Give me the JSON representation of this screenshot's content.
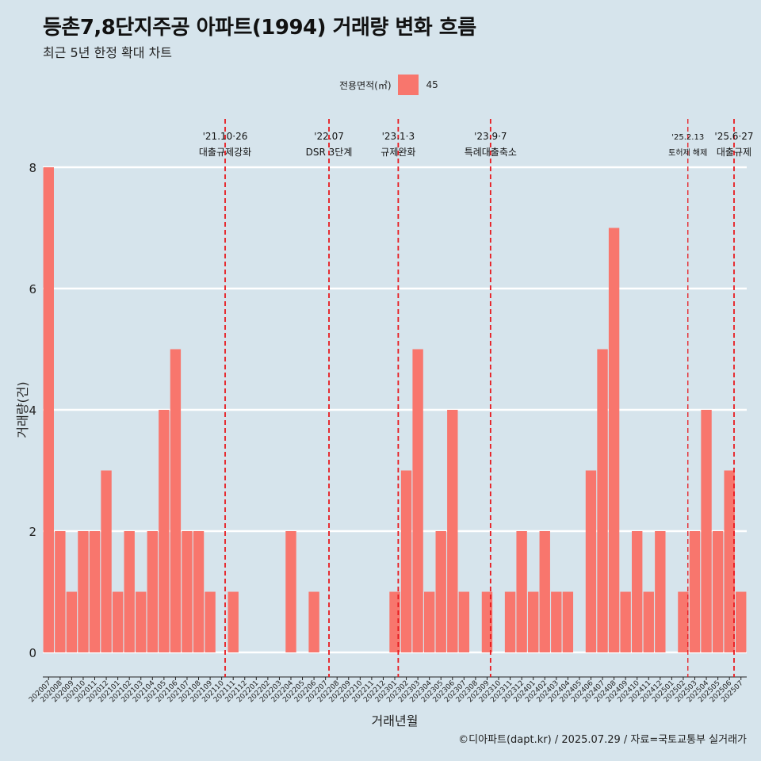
{
  "title": "등촌7,8단지주공 아파트(1994) 거래량 변화 흐름",
  "subtitle": "최근 5년 한정 확대 차트",
  "legend": {
    "title": "전용면적(㎡)",
    "entries": [
      {
        "label": "45",
        "color": "#f8766d"
      }
    ]
  },
  "caption": "©디아파트(dapt.kr) / 2025.07.29 / 자료=국토교통부 실거래가",
  "colors": {
    "background": "#d6e4ec",
    "bar": "#f8766d",
    "grid": "#ffffff",
    "event_line": "#e8191e"
  },
  "chart_data": {
    "type": "bar",
    "xlabel": "거래년월",
    "ylabel": "거래량(건)",
    "ylim": [
      0,
      8
    ],
    "y_ticks": [
      0,
      2,
      4,
      6,
      8
    ],
    "grid": true,
    "legend_position": "top",
    "categories": [
      "202007",
      "202008",
      "202009",
      "202010",
      "202011",
      "202012",
      "202101",
      "202102",
      "202103",
      "202104",
      "202105",
      "202106",
      "202107",
      "202108",
      "202109",
      "202110",
      "202111",
      "202112",
      "202201",
      "202202",
      "202203",
      "202204",
      "202205",
      "202206",
      "202207",
      "202208",
      "202209",
      "202210",
      "202211",
      "202212",
      "202301",
      "202302",
      "202303",
      "202304",
      "202305",
      "202306",
      "202307",
      "202308",
      "202309",
      "202310",
      "202311",
      "202312",
      "202401",
      "202402",
      "202403",
      "202404",
      "202405",
      "202406",
      "202407",
      "202408",
      "202409",
      "202410",
      "202411",
      "202412",
      "202501",
      "202502",
      "202503",
      "202504",
      "202505",
      "202506",
      "202507"
    ],
    "series": [
      {
        "name": "45",
        "values": [
          8,
          2,
          1,
          2,
          2,
          3,
          1,
          2,
          1,
          2,
          4,
          5,
          2,
          2,
          1,
          0,
          1,
          0,
          0,
          0,
          0,
          2,
          0,
          1,
          0,
          0,
          0,
          0,
          0,
          0,
          1,
          3,
          5,
          1,
          2,
          4,
          1,
          0,
          1,
          0,
          1,
          2,
          1,
          2,
          1,
          1,
          0,
          3,
          5,
          7,
          1,
          2,
          1,
          2,
          0,
          1,
          2,
          4,
          2,
          3,
          1
        ]
      }
    ],
    "annotations": [
      {
        "x": 15.3,
        "date": "'21.10·26",
        "label": "대출규제강화"
      },
      {
        "x": 24.3,
        "date": "'22.07",
        "label": "DSR 3단계"
      },
      {
        "x": 30.3,
        "date": "'23.1·3",
        "label": "규제완화"
      },
      {
        "x": 38.3,
        "date": "'23.9·7",
        "label": "특례대출축소"
      },
      {
        "x": 55.4,
        "date": "'25.2.13",
        "label": "토허제 해제"
      },
      {
        "x": 59.4,
        "date": "'25.6·27",
        "label": "대출규제"
      }
    ]
  }
}
